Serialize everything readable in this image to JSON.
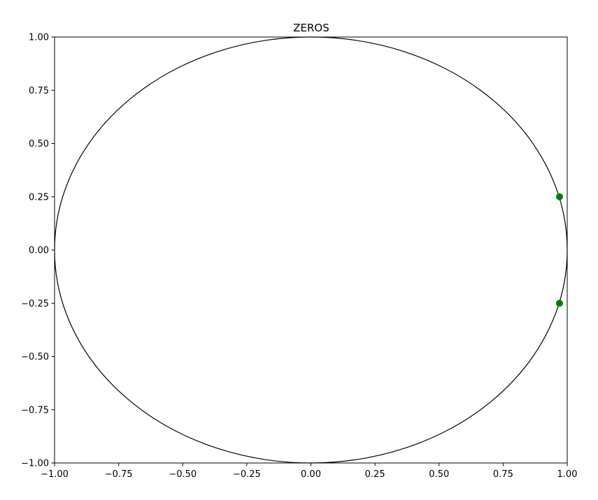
{
  "chart_data": {
    "type": "scatter",
    "title": "ZEROS",
    "xlabel": "",
    "ylabel": "",
    "xlim": [
      -1.0,
      1.0
    ],
    "ylim": [
      -1.0,
      1.0
    ],
    "grid": false,
    "x_ticks": [
      -1.0,
      -0.75,
      -0.5,
      -0.25,
      0.0,
      0.25,
      0.5,
      0.75,
      1.0
    ],
    "y_ticks": [
      -1.0,
      -0.75,
      -0.5,
      -0.25,
      0.0,
      0.25,
      0.5,
      0.75,
      1.0
    ],
    "x_tick_labels": [
      "−1.00",
      "−0.75",
      "−0.50",
      "−0.25",
      "0.00",
      "0.25",
      "0.50",
      "0.75",
      "1.00"
    ],
    "y_tick_labels": [
      "−1.00",
      "−0.75",
      "−0.50",
      "−0.25",
      "0.00",
      "0.25",
      "0.50",
      "0.75",
      "1.00"
    ],
    "unit_circle": {
      "center": [
        0,
        0
      ],
      "radius": 1,
      "color": "#000000"
    },
    "series": [
      {
        "color": "#008000",
        "points": [
          {
            "x": 0.97,
            "y": 0.25
          },
          {
            "x": 0.97,
            "y": -0.25
          }
        ]
      }
    ]
  }
}
